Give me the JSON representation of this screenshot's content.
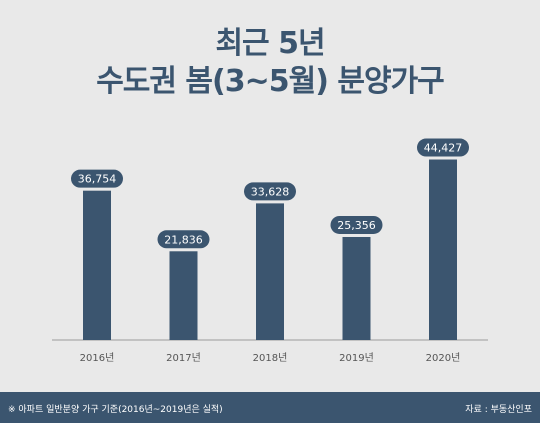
{
  "header": {
    "title_line1": "최근 5년",
    "title_line2": "수도권 봄(3~5월) 분양가구"
  },
  "footer": {
    "note": "※ 아파트 일반분양 가구 기준(2016년~2019년은 실적)",
    "source": "자료 : 부동산인포"
  },
  "colors": {
    "bar": "#3b556f",
    "background": "#e9e9e9",
    "title": "#3b556f",
    "axis_line": "#9a9a9a",
    "label_bg": "#3b556f",
    "label_text": "#ffffff",
    "tick_text": "#555555"
  },
  "chart_data": {
    "type": "bar",
    "title": "최근 5년 수도권 봄(3~5월) 분양가구",
    "categories": [
      "2016년",
      "2017년",
      "2018년",
      "2019년",
      "2020년"
    ],
    "values": [
      36754,
      21836,
      33628,
      25356,
      44427
    ],
    "value_labels": [
      "36,754",
      "21,836",
      "33,628",
      "25,356",
      "44,427"
    ],
    "ylim": [
      0,
      48000
    ],
    "grid": false,
    "legend": "none"
  }
}
